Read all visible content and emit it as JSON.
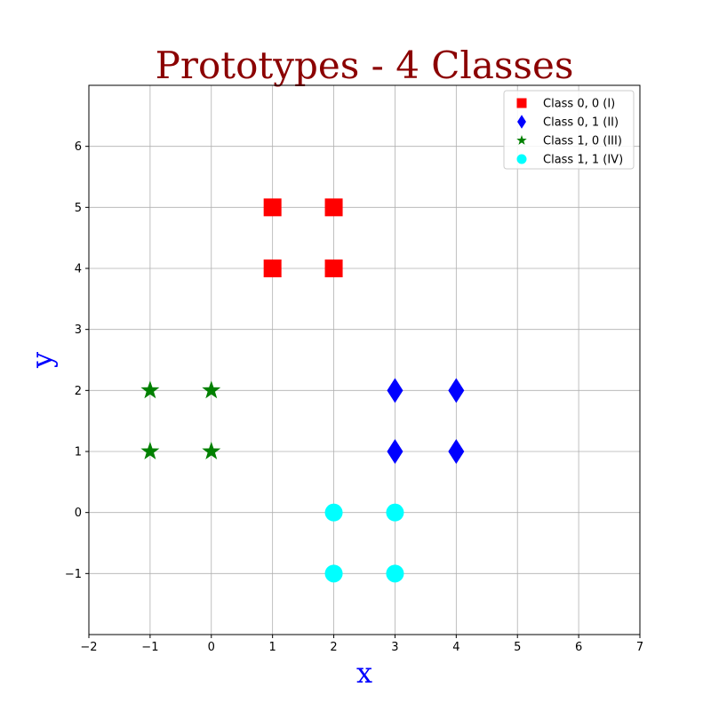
{
  "chart_data": {
    "type": "scatter",
    "title": "Prototypes - 4 Classes",
    "xlabel": "x",
    "ylabel": "y",
    "xlim": [
      -2,
      7
    ],
    "ylim": [
      -2,
      7
    ],
    "xticks": [
      -2,
      -1,
      0,
      1,
      2,
      3,
      4,
      5,
      6,
      7
    ],
    "yticks": [
      -1,
      0,
      1,
      2,
      3,
      4,
      5,
      6
    ],
    "xtick_labels": [
      "−2",
      "−1",
      "0",
      "1",
      "2",
      "3",
      "4",
      "5",
      "6",
      "7"
    ],
    "ytick_labels": [
      "−1",
      "0",
      "1",
      "2",
      "3",
      "4",
      "5",
      "6"
    ],
    "grid": true,
    "legend_position": "top-right",
    "title_color": "#8b0000",
    "axis_label_color": "#0000ff",
    "series": [
      {
        "name": "Class 0, 0 (I)",
        "marker": "square",
        "color": "#ff0000",
        "points": [
          [
            1,
            4
          ],
          [
            1,
            5
          ],
          [
            2,
            4
          ],
          [
            2,
            5
          ]
        ]
      },
      {
        "name": "Class 0, 1 (II)",
        "marker": "thin-diamond",
        "color": "#0000ff",
        "points": [
          [
            3,
            1
          ],
          [
            3,
            2
          ],
          [
            4,
            1
          ],
          [
            4,
            2
          ]
        ]
      },
      {
        "name": "Class 1, 0 (III)",
        "marker": "star",
        "color": "#008000",
        "points": [
          [
            -1,
            1
          ],
          [
            -1,
            2
          ],
          [
            0,
            1
          ],
          [
            0,
            2
          ]
        ]
      },
      {
        "name": "Class 1, 1 (IV)",
        "marker": "circle",
        "color": "#00ffff",
        "points": [
          [
            2,
            -1
          ],
          [
            2,
            0
          ],
          [
            3,
            -1
          ],
          [
            3,
            0
          ]
        ]
      }
    ]
  }
}
